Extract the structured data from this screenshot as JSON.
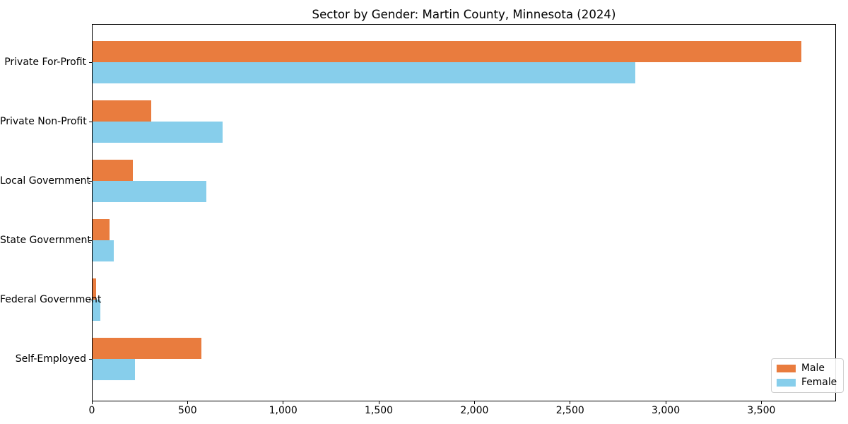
{
  "title": "Sector by Gender: Martin County, Minnesota (2024)",
  "chart_data": {
    "type": "bar",
    "orientation": "horizontal",
    "title": "Sector by Gender: Martin County, Minnesota (2024)",
    "categories": [
      "Private For-Profit",
      "Private Non-Profit",
      "Local Government",
      "State Government",
      "Federal Government",
      "Self-Employed"
    ],
    "series": [
      {
        "name": "Male",
        "color": "#E97C3E",
        "values": [
          3710,
          310,
          215,
          92,
          22,
          573
        ]
      },
      {
        "name": "Female",
        "color": "#87CEEB",
        "values": [
          2840,
          685,
          600,
          115,
          44,
          225
        ]
      }
    ],
    "xlabel": "",
    "ylabel": "",
    "xlim": [
      0,
      3890
    ],
    "x_ticks": [
      0,
      500,
      1000,
      1500,
      2000,
      2500,
      3000,
      3500
    ],
    "x_tick_labels": [
      "0",
      "500",
      "1,000",
      "1,500",
      "2,000",
      "2,500",
      "3,000",
      "3,500"
    ],
    "grid": false,
    "legend_position": "lower right",
    "background_color": "#ffffff",
    "spine_color": "#000000"
  }
}
